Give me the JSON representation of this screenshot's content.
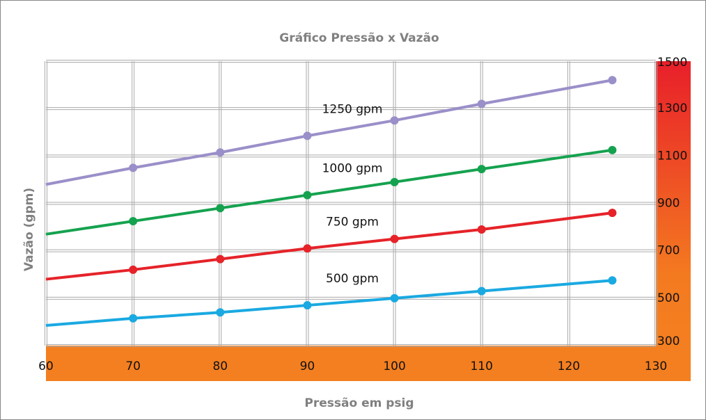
{
  "chart_data": {
    "type": "line",
    "title": "Gráfico Pressão x Vazão",
    "x_label": "Pressão em psig",
    "y_label": "Vazão (gpm)",
    "x": [
      60,
      70,
      80,
      90,
      100,
      110,
      125
    ],
    "series": [
      {
        "name": "1250 gpm",
        "color": "#9b8fc9",
        "values": [
          980,
          1050,
          1115,
          1185,
          1250,
          1320,
          1420
        ]
      },
      {
        "name": "1000 gpm",
        "color": "#15a24f",
        "values": [
          770,
          825,
          880,
          935,
          990,
          1045,
          1125
        ]
      },
      {
        "name": "750 gpm",
        "color": "#e52329",
        "values": [
          580,
          620,
          665,
          710,
          750,
          790,
          860
        ]
      },
      {
        "name": "500 gpm",
        "color": "#1aa9e1",
        "values": [
          385,
          415,
          440,
          470,
          500,
          530,
          575
        ]
      }
    ],
    "xlim": [
      60,
      130
    ],
    "xticks": [
      60,
      70,
      80,
      90,
      100,
      110,
      120,
      130
    ],
    "ylim": [
      300,
      1500
    ],
    "yticks": [
      300,
      500,
      700,
      900,
      1100,
      1300,
      1500
    ],
    "grid": true
  }
}
